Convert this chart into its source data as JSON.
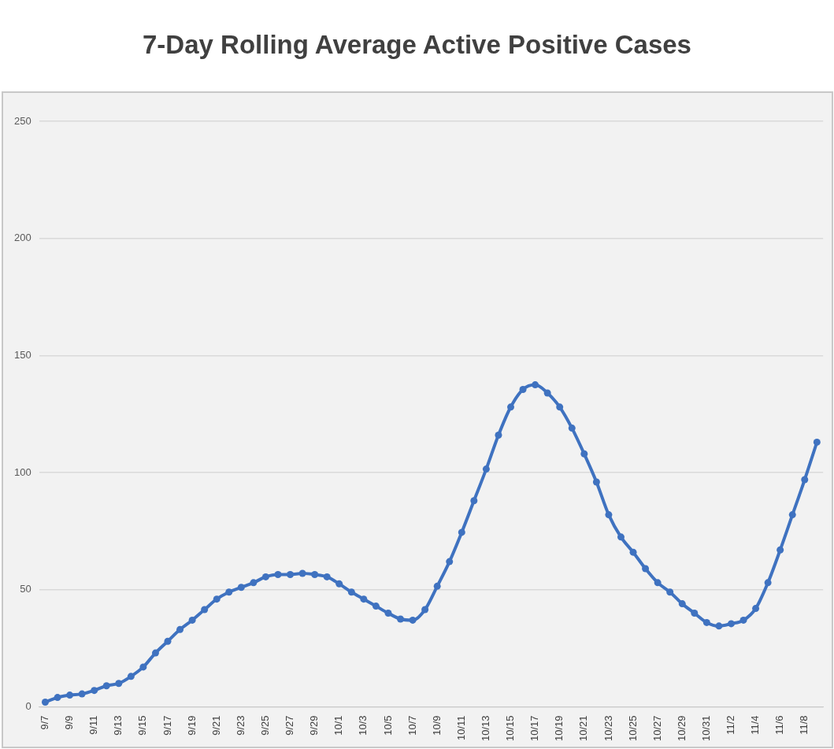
{
  "chart_data": {
    "type": "line",
    "title": "7-Day Rolling Average Active Positive Cases",
    "categories": [
      "9/7",
      null,
      "9/9",
      null,
      "9/11",
      null,
      "9/13",
      null,
      "9/15",
      null,
      "9/17",
      null,
      "9/19",
      null,
      "9/21",
      null,
      "9/23",
      null,
      "9/25",
      null,
      "9/27",
      null,
      "9/29",
      null,
      "10/1",
      null,
      "10/3",
      null,
      "10/5",
      null,
      "10/7",
      null,
      "10/9",
      null,
      "10/11",
      null,
      "10/13",
      null,
      "10/15",
      null,
      "10/17",
      null,
      "10/19",
      null,
      "10/21",
      null,
      "10/23",
      null,
      "10/25",
      null,
      "10/27",
      null,
      "10/29",
      null,
      "10/31",
      null,
      "11/2",
      null,
      "11/4",
      null,
      "11/6",
      null,
      "11/8",
      null
    ],
    "series": [
      {
        "color": "#3f72c0",
        "values": [
          2,
          4,
          5,
          5.5,
          7,
          9,
          10,
          13,
          17,
          23,
          28,
          33,
          37,
          41.5,
          46,
          49,
          51,
          53,
          55.5,
          56.5,
          56.5,
          57,
          56.5,
          55.5,
          52.5,
          49,
          46,
          43,
          40,
          37.5,
          37,
          41.5,
          51.5,
          62,
          74.5,
          88,
          101.5,
          116,
          128,
          135.5,
          137.5,
          134,
          128,
          119,
          108,
          96,
          82,
          72.5,
          66,
          59,
          53,
          49,
          44,
          40,
          36,
          34.5,
          35.5,
          37,
          42,
          53,
          67,
          82,
          97,
          113
        ]
      }
    ],
    "ylim": [
      0,
      250
    ],
    "yticks": [
      0,
      50,
      100,
      150,
      200,
      250
    ],
    "grid": "y",
    "marker": "circle",
    "line_style": "solid"
  }
}
